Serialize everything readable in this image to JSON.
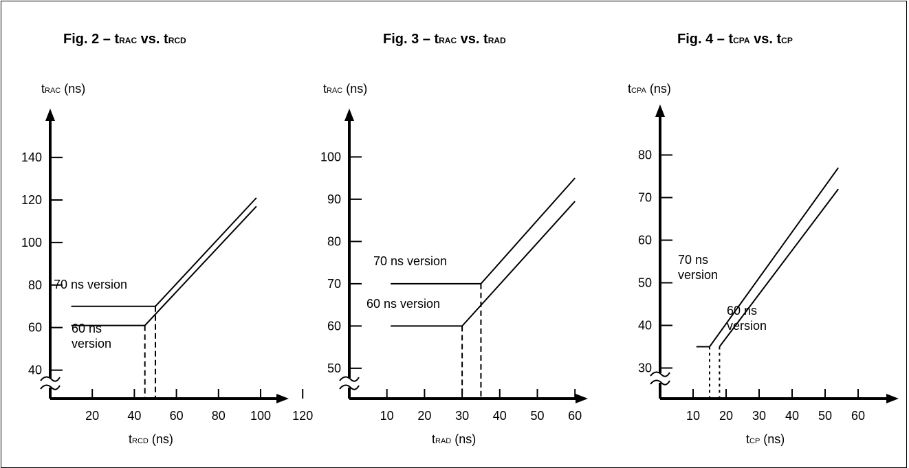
{
  "chart_data": [
    {
      "type": "line",
      "title": {
        "prefix": "Fig. 2  –  t",
        "sub1": "RAC",
        "mid": " vs. t",
        "sub2": "RCD"
      },
      "ylabel": {
        "main": "t",
        "sub": "RAC",
        "unit": " (ns)"
      },
      "xlabel": {
        "main": "t",
        "sub": "RCD",
        "unit": " (ns)"
      },
      "x_ticks": [
        20,
        40,
        60,
        80,
        100,
        120
      ],
      "y_ticks": [
        40,
        60,
        80,
        100,
        120,
        140
      ],
      "xlim": [
        0,
        130
      ],
      "ylim": [
        25,
        160
      ],
      "axis_break": true,
      "series": [
        {
          "x": [
            10,
            50,
            98
          ],
          "y": [
            70,
            70,
            121
          ]
        },
        {
          "x": [
            10,
            45,
            98
          ],
          "y": [
            61,
            61,
            117
          ]
        }
      ],
      "guides": [
        {
          "x": 50,
          "y": 70
        },
        {
          "x": 45,
          "y": 61
        }
      ],
      "annotations": [
        {
          "lines": [
            "70 ns version"
          ]
        },
        {
          "lines": [
            "60 ns",
            "version"
          ]
        }
      ]
    },
    {
      "type": "line",
      "title": {
        "prefix": "Fig. 3  –  t",
        "sub1": "RAC",
        "mid": " vs. t",
        "sub2": "RAD"
      },
      "ylabel": {
        "main": "t",
        "sub": "RAC",
        "unit": " (ns)"
      },
      "xlabel": {
        "main": "t",
        "sub": "RAD",
        "unit": " (ns)"
      },
      "x_ticks": [
        10,
        20,
        30,
        40,
        50,
        60
      ],
      "y_ticks": [
        50,
        60,
        70,
        80,
        90,
        100
      ],
      "xlim": [
        0,
        65
      ],
      "ylim": [
        42.5,
        110
      ],
      "axis_break": true,
      "series": [
        {
          "x": [
            11,
            35,
            60
          ],
          "y": [
            70,
            70,
            95
          ]
        },
        {
          "x": [
            11,
            30,
            60
          ],
          "y": [
            60,
            60,
            89.5
          ]
        }
      ],
      "guides": [
        {
          "x": 35,
          "y": 70
        },
        {
          "x": 30,
          "y": 60
        }
      ],
      "annotations": [
        {
          "lines": [
            "70 ns version"
          ]
        },
        {
          "lines": [
            "60 ns version"
          ]
        }
      ]
    },
    {
      "type": "line",
      "title": {
        "prefix": "Fig. 4  –  t",
        "sub1": "CPA",
        "mid": " vs. t",
        "sub2": "CP"
      },
      "ylabel": {
        "main": "t",
        "sub": "CPA",
        "unit": " (ns)"
      },
      "xlabel": {
        "main": "t",
        "sub": "CP",
        "unit": " (ns)"
      },
      "x_ticks": [
        10,
        20,
        30,
        40,
        50,
        60
      ],
      "y_ticks": [
        30,
        40,
        50,
        60,
        70,
        80
      ],
      "xlim": [
        0,
        65
      ],
      "ylim": [
        22.5,
        87
      ],
      "axis_break": true,
      "series": [
        {
          "x": [
            11,
            15,
            54
          ],
          "y": [
            35,
            35,
            77
          ]
        },
        {
          "x": [
            18,
            54
          ],
          "y": [
            35,
            72
          ]
        }
      ],
      "guides": [
        {
          "x": 15,
          "y": 35
        },
        {
          "x": 18,
          "y": 35
        }
      ],
      "annotations": [
        {
          "lines": [
            "70 ns",
            "version"
          ]
        },
        {
          "lines": [
            "60 ns",
            "version"
          ]
        }
      ]
    }
  ]
}
